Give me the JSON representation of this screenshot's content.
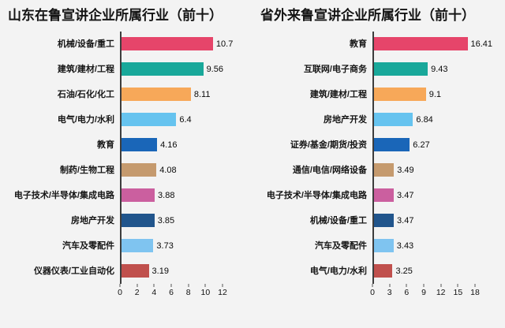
{
  "page": {
    "background": "#f3f3f3"
  },
  "chart_data": [
    {
      "type": "bar",
      "orientation": "horizontal",
      "title": "山东在鲁宣讲企业所属行业（前十）",
      "categories": [
        "机械/设备/重工",
        "建筑/建材/工程",
        "石油/石化/化工",
        "电气/电力/水利",
        "教育",
        "制药/生物工程",
        "电子技术/半导体/集成电路",
        "房地产开发",
        "汽车及零配件",
        "仪器仪表/工业自动化"
      ],
      "values": [
        10.7,
        9.56,
        8.11,
        6.4,
        4.16,
        4.08,
        3.88,
        3.85,
        3.73,
        3.19
      ],
      "colors": [
        "#e6456a",
        "#19a89a",
        "#f7a859",
        "#66c3ef",
        "#1a66b8",
        "#c59a6e",
        "#cb5f9f",
        "#21558c",
        "#7fc4f0",
        "#c0504d"
      ],
      "xlabel": "",
      "ylabel": "",
      "xlim": [
        0,
        12
      ],
      "xmax": 12,
      "xticks": [
        0,
        2,
        4,
        6,
        8,
        10,
        12
      ],
      "grid": false,
      "legend": false
    },
    {
      "type": "bar",
      "orientation": "horizontal",
      "title": "省外来鲁宣讲企业所属行业（前十）",
      "categories": [
        "教育",
        "互联网/电子商务",
        "建筑/建材/工程",
        "房地产开发",
        "证券/基金/期货/投资",
        "通信/电信/网络设备",
        "电子技术/半导体/集成电路",
        "机械/设备/重工",
        "汽车及零配件",
        "电气/电力/水利"
      ],
      "values": [
        16.41,
        9.43,
        9.1,
        6.84,
        6.27,
        3.49,
        3.47,
        3.47,
        3.43,
        3.25
      ],
      "colors": [
        "#e6456a",
        "#19a89a",
        "#f7a859",
        "#66c3ef",
        "#1a66b8",
        "#c59a6e",
        "#cb5f9f",
        "#21558c",
        "#7fc4f0",
        "#c0504d"
      ],
      "xlabel": "",
      "ylabel": "",
      "xlim": [
        0,
        18
      ],
      "xmax": 18,
      "xticks": [
        0,
        3,
        6,
        9,
        12,
        15,
        18
      ],
      "grid": false,
      "legend": false
    }
  ]
}
